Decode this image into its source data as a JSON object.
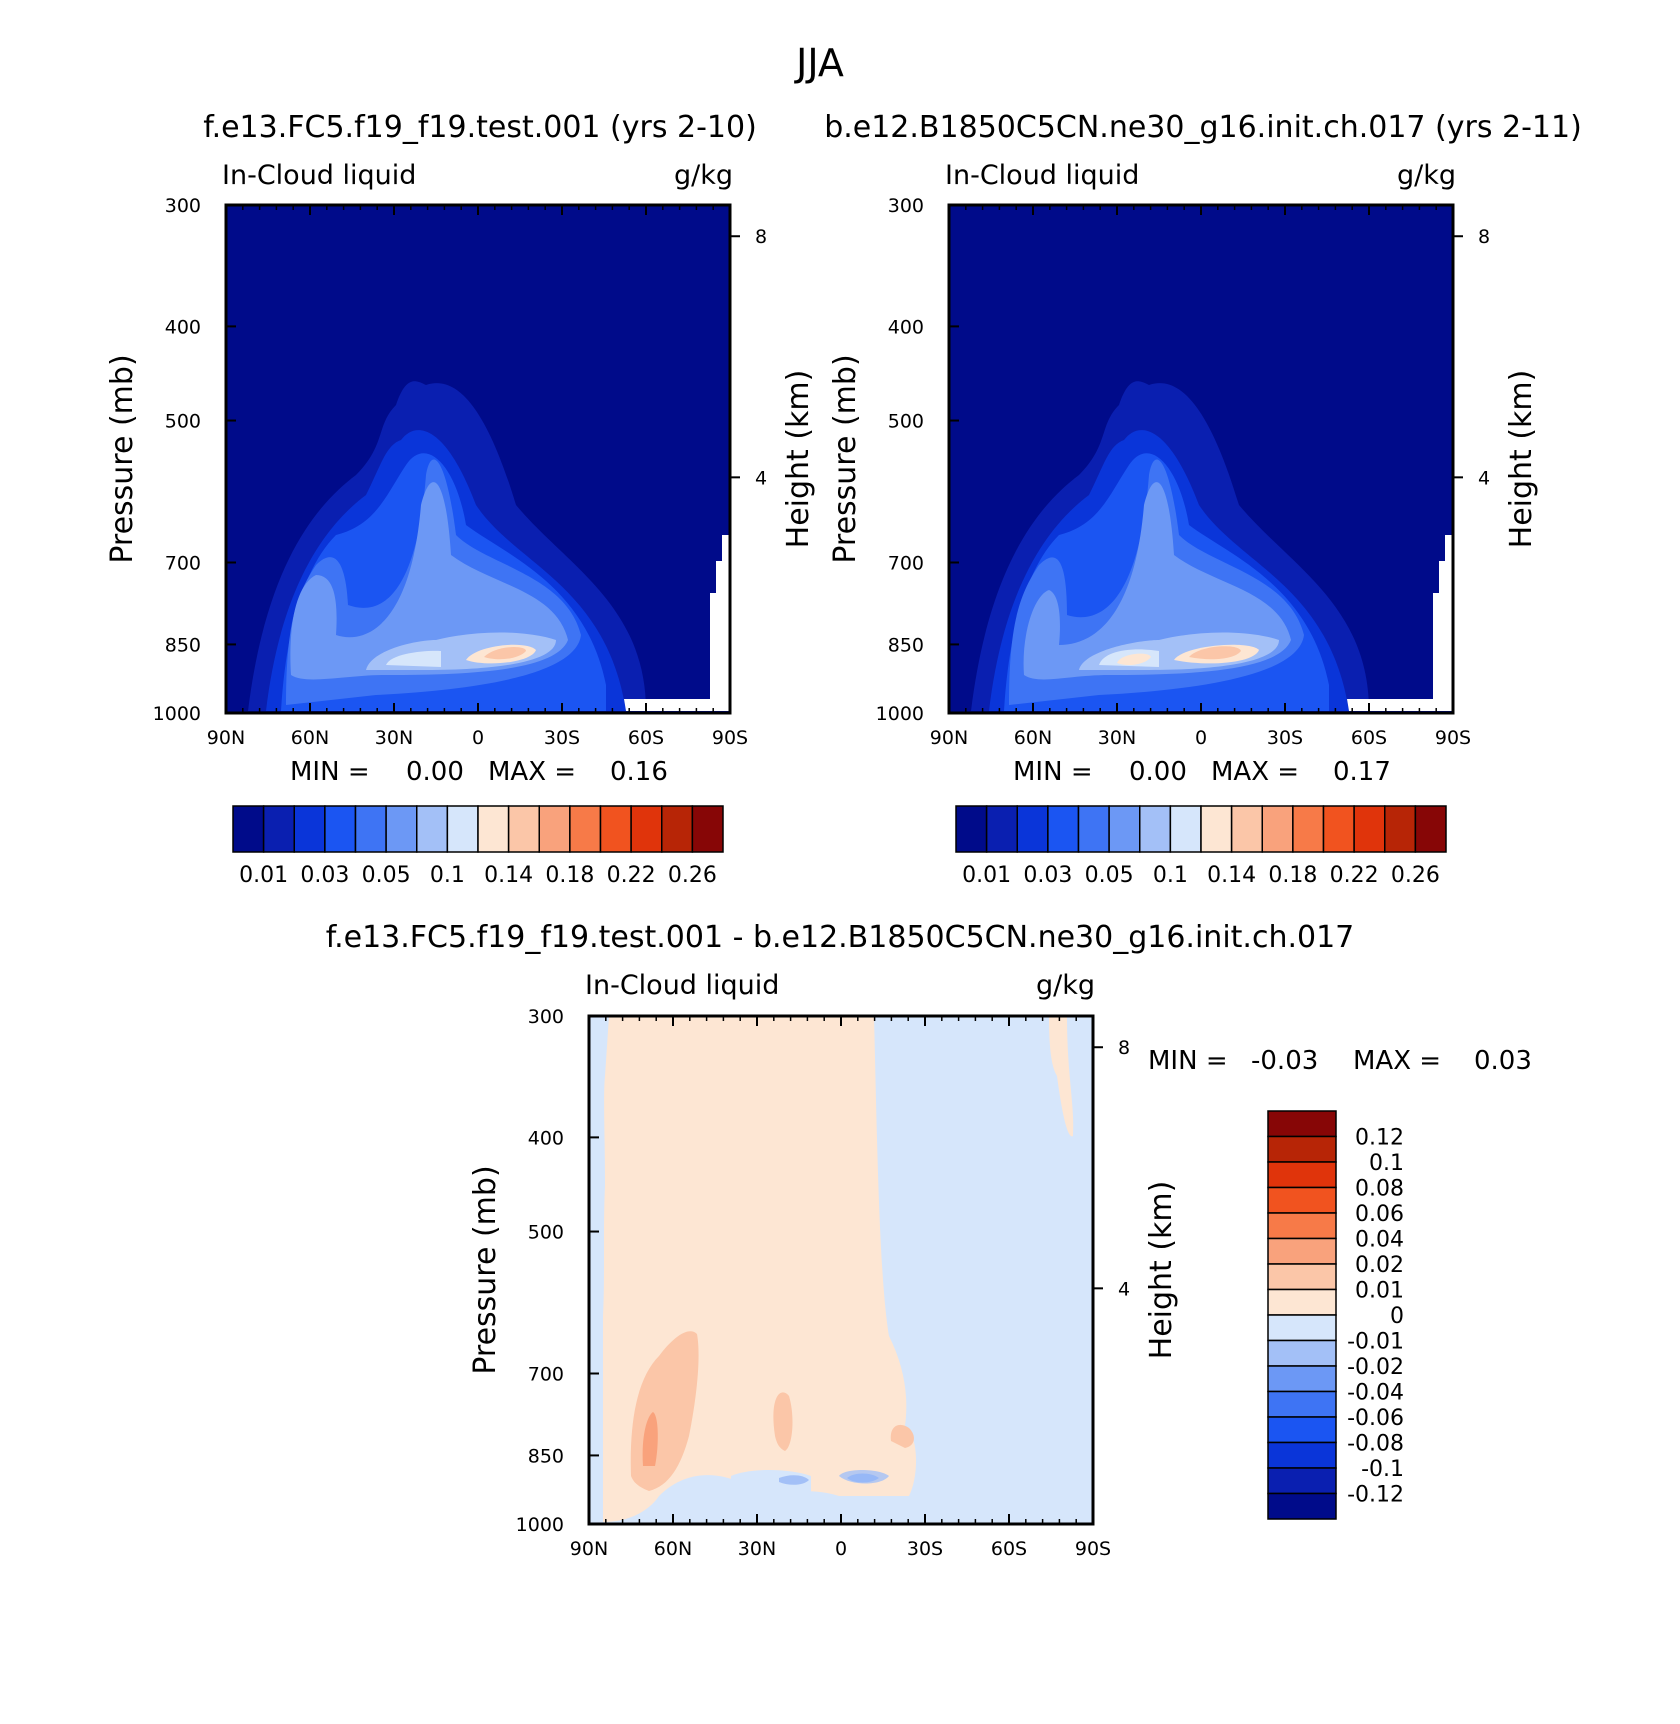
{
  "figure_title": "JJA",
  "chart_data": [
    {
      "type": "heatmap",
      "panel": "left",
      "title": "f.e13.FC5.f19_f19.test.001 (yrs 2-10)",
      "subtitle_left": "In-Cloud liquid",
      "subtitle_right": "g/kg",
      "xlabel": "",
      "ylabel": "Pressure (mb)",
      "y2label": "Height (km)",
      "x_ticks": [
        "90N",
        "60N",
        "30N",
        "0",
        "30S",
        "60S",
        "90S"
      ],
      "y_ticks": [
        300,
        400,
        500,
        700,
        850,
        1000
      ],
      "y2_ticks": [
        8,
        4
      ],
      "ylim": [
        1000,
        300
      ],
      "stats": {
        "min_label": "MIN =",
        "min": "0.00",
        "max_label": "MAX =",
        "max": "0.16"
      },
      "colorbar_labels": [
        "0.01",
        "0.03",
        "0.05",
        "0.1",
        "0.14",
        "0.18",
        "0.22",
        "0.26"
      ]
    },
    {
      "type": "heatmap",
      "panel": "right",
      "title": "b.e12.B1850C5CN.ne30_g16.init.ch.017 (yrs 2-11)",
      "subtitle_left": "In-Cloud liquid",
      "subtitle_right": "g/kg",
      "xlabel": "",
      "ylabel": "Pressure (mb)",
      "y2label": "Height (km)",
      "x_ticks": [
        "90N",
        "60N",
        "30N",
        "0",
        "30S",
        "60S",
        "90S"
      ],
      "y_ticks": [
        300,
        400,
        500,
        700,
        850,
        1000
      ],
      "y2_ticks": [
        8,
        4
      ],
      "ylim": [
        1000,
        300
      ],
      "stats": {
        "min_label": "MIN =",
        "min": "0.00",
        "max_label": "MAX =",
        "max": "0.17"
      },
      "colorbar_labels": [
        "0.01",
        "0.03",
        "0.05",
        "0.1",
        "0.14",
        "0.18",
        "0.22",
        "0.26"
      ]
    },
    {
      "type": "heatmap",
      "panel": "difference",
      "title": "f.e13.FC5.f19_f19.test.001 - b.e12.B1850C5CN.ne30_g16.init.ch.017",
      "subtitle_left": "In-Cloud liquid",
      "subtitle_right": "g/kg",
      "xlabel": "",
      "ylabel": "Pressure (mb)",
      "y2label": "Height (km)",
      "x_ticks": [
        "90N",
        "60N",
        "30N",
        "0",
        "30S",
        "60S",
        "90S"
      ],
      "y_ticks": [
        300,
        400,
        500,
        700,
        850,
        1000
      ],
      "y2_ticks": [
        8,
        4
      ],
      "ylim": [
        1000,
        300
      ],
      "stats": {
        "min_label": "MIN =",
        "min": "-0.03",
        "max_label": "MAX =",
        "max": "0.03"
      },
      "colorbar_labels": [
        "0.12",
        "0.1",
        "0.08",
        "0.06",
        "0.04",
        "0.02",
        "0.01",
        "0",
        "-0.01",
        "-0.02",
        "-0.04",
        "-0.06",
        "-0.08",
        "-0.1",
        "-0.12"
      ]
    }
  ],
  "colors": {
    "seq": [
      "#000b8a",
      "#0a1fb0",
      "#0a35d9",
      "#1b55f2",
      "#3e74f4",
      "#6c98f5",
      "#a3c0f7",
      "#d6e6fb",
      "#fde6d3",
      "#fbc6a8",
      "#f9a27c",
      "#f77a48",
      "#f1531f",
      "#e0340b",
      "#b72506",
      "#870606"
    ],
    "diff": [
      "#870606",
      "#b72506",
      "#e0340b",
      "#f1531f",
      "#f77a48",
      "#f9a27c",
      "#fbc6a8",
      "#fde6d3",
      "#d6e6fb",
      "#a3c0f7",
      "#6c98f5",
      "#3e74f4",
      "#1b55f2",
      "#0a35d9",
      "#0a1fb0",
      "#000b8a"
    ]
  }
}
